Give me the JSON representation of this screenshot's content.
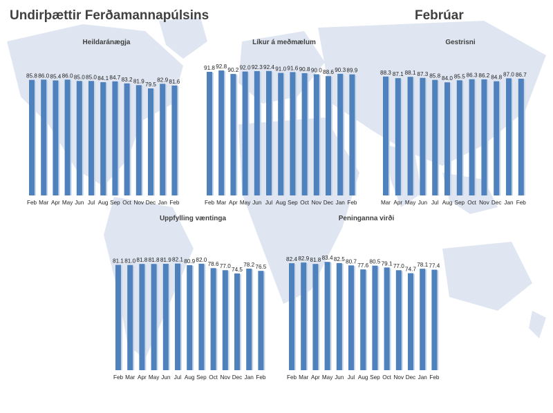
{
  "title": "Undirþættir Ferðamannapúlsins",
  "month": "Febrúar",
  "colors": {
    "bar": "#4f81bd",
    "text": "#404040",
    "map": "#dfe6f1"
  },
  "chart_data": [
    {
      "type": "bar",
      "title": "Heildaránægja",
      "categories": [
        "Feb",
        "Mar",
        "Apr",
        "May",
        "Jun",
        "Jul",
        "Aug",
        "Sep",
        "Oct",
        "Nov",
        "Dec",
        "Jan",
        "Feb"
      ],
      "values": [
        85.8,
        86.0,
        85.4,
        86.0,
        85.0,
        85.0,
        84.1,
        84.7,
        83.2,
        81.9,
        79.5,
        82.9,
        81.6
      ]
    },
    {
      "type": "bar",
      "title": "Líkur á meðmælum",
      "categories": [
        "Feb",
        "Mar",
        "Apr",
        "May",
        "Jun",
        "Jul",
        "Aug",
        "Sep",
        "Oct",
        "Nov",
        "Dec",
        "Jan",
        "Feb"
      ],
      "values": [
        91.8,
        92.8,
        90.2,
        92.0,
        92.3,
        92.4,
        91.0,
        91.6,
        90.8,
        90.0,
        88.6,
        90.3,
        89.9
      ]
    },
    {
      "type": "bar",
      "title": "Gestrisni",
      "categories": [
        "Mar",
        "Apr",
        "May",
        "Jun",
        "Jul",
        "Aug",
        "Sep",
        "Oct",
        "Nov",
        "Dec",
        "Jan",
        "Feb"
      ],
      "values": [
        88.3,
        87.1,
        88.1,
        87.3,
        85.8,
        84.0,
        85.5,
        86.3,
        86.2,
        84.8,
        87.0,
        86.7
      ]
    },
    {
      "type": "bar",
      "title": "Uppfylling væntinga",
      "categories": [
        "Feb",
        "Mar",
        "Apr",
        "May",
        "Jun",
        "Jul",
        "Aug",
        "Sep",
        "Oct",
        "Nov",
        "Dec",
        "Jan",
        "Feb"
      ],
      "values": [
        81.1,
        81.0,
        81.8,
        81.8,
        81.9,
        82.1,
        80.9,
        82.0,
        78.6,
        77.0,
        74.5,
        78.2,
        76.5
      ]
    },
    {
      "type": "bar",
      "title": "Peninganna virði",
      "categories": [
        "Feb",
        "Mar",
        "Apr",
        "May",
        "Jun",
        "Jul",
        "Aug",
        "Sep",
        "Oct",
        "Nov",
        "Dec",
        "Jan",
        "Feb"
      ],
      "values": [
        82.4,
        82.9,
        81.8,
        83.4,
        82.5,
        80.7,
        77.6,
        80.5,
        79.1,
        77.0,
        74.7,
        78.1,
        77.4
      ]
    }
  ]
}
